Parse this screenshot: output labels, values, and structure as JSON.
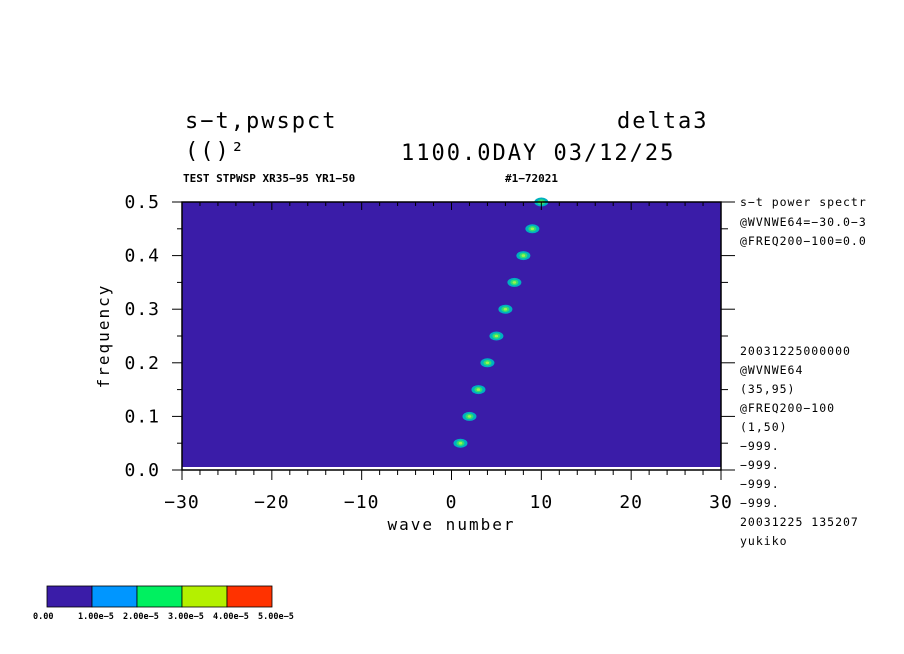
{
  "header": {
    "title_left": "s−t,pwspct",
    "title_right": "delta3",
    "subtitle_left": "(()²",
    "subtitle_right": "1100.0DAY 03/12/25",
    "info_left": "TEST STPWSP XR35−95 YR1−50",
    "info_right": "#1−72021"
  },
  "side_notes_top": [
    "s−t power spectr",
    "@WVNWE64=−30.0−3",
    "@FREQ200−100=0.0"
  ],
  "side_notes_bottom": [
    "20031225000000",
    "@WVNWE64",
    "(35,95)",
    "@FREQ200−100",
    "(1,50)",
    "−999.",
    "−999.",
    "−999.",
    "−999.",
    "20031225 135207",
    "yukiko"
  ],
  "colorbar": {
    "colors": [
      "#3a1ca8",
      "#0096ff",
      "#00f060",
      "#b4f000",
      "#ff3200"
    ],
    "labels": [
      "0.00",
      "1.00e−5",
      "2.00e−5",
      "3.00e−5",
      "4.00e−5",
      "5.00e−5"
    ]
  },
  "chart_data": {
    "type": "heatmap",
    "xlabel": "wave number",
    "ylabel": "frequency",
    "xlim": [
      -30,
      30
    ],
    "ylim": [
      0,
      0.5
    ],
    "x_ticks": [
      -30,
      -20,
      -10,
      0,
      10,
      20,
      30
    ],
    "x_tick_labels": [
      "−30",
      "−20",
      "−10",
      "0",
      "10",
      "20",
      "30"
    ],
    "y_ticks": [
      0,
      0.1,
      0.2,
      0.3,
      0.4,
      0.5
    ],
    "y_tick_labels": [
      "0.0",
      "0.1",
      "0.2",
      "0.3",
      "0.4",
      "0.5"
    ],
    "background_color": "#3a1ca8",
    "peaks": [
      {
        "x": 1,
        "y": 0.05
      },
      {
        "x": 2,
        "y": 0.1
      },
      {
        "x": 3,
        "y": 0.15
      },
      {
        "x": 4,
        "y": 0.2
      },
      {
        "x": 5,
        "y": 0.25
      },
      {
        "x": 6,
        "y": 0.3
      },
      {
        "x": 7,
        "y": 0.35
      },
      {
        "x": 8,
        "y": 0.4
      },
      {
        "x": 9,
        "y": 0.45
      },
      {
        "x": 10,
        "y": 0.5
      }
    ]
  }
}
